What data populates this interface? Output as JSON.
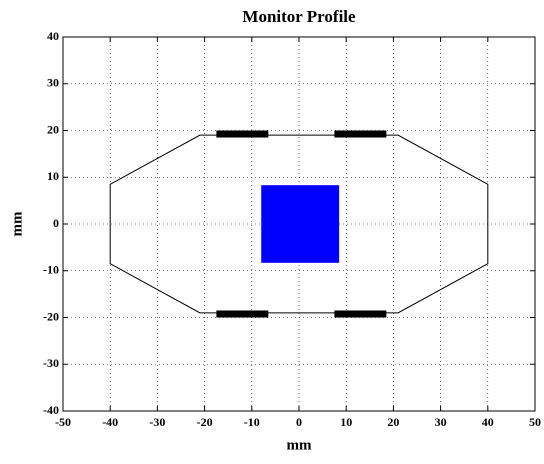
{
  "chart_data": {
    "type": "shapes",
    "title": "Monitor Profile",
    "xlabel": "mm",
    "ylabel": "mm",
    "xlim": [
      -50,
      50
    ],
    "ylim": [
      -40,
      40
    ],
    "xticks": [
      -50,
      -40,
      -30,
      -20,
      -10,
      0,
      10,
      20,
      30,
      40,
      50
    ],
    "yticks": [
      -40,
      -30,
      -20,
      -10,
      0,
      10,
      20,
      30,
      40
    ],
    "grid": true,
    "outline": {
      "color": "#000000",
      "x": [
        -40,
        -21,
        21,
        40,
        40,
        21,
        -21,
        -40
      ],
      "y": [
        8.5,
        19,
        19,
        8.5,
        -8.5,
        -19,
        -19,
        -8.5
      ]
    },
    "rects": [
      {
        "color": "#000000",
        "x": [
          -17.5,
          -6.5
        ],
        "y": [
          18.5,
          20
        ]
      },
      {
        "color": "#000000",
        "x": [
          7.5,
          18.5
        ],
        "y": [
          18.5,
          20
        ]
      },
      {
        "color": "#000000",
        "x": [
          -17.5,
          -6.5
        ],
        "y": [
          -20,
          -18.5
        ]
      },
      {
        "color": "#000000",
        "x": [
          7.5,
          18.5
        ],
        "y": [
          -20,
          -18.5
        ]
      },
      {
        "color": "#0000ff",
        "x": [
          -8,
          8.5
        ],
        "y": [
          -8.3,
          8.3
        ]
      }
    ]
  }
}
